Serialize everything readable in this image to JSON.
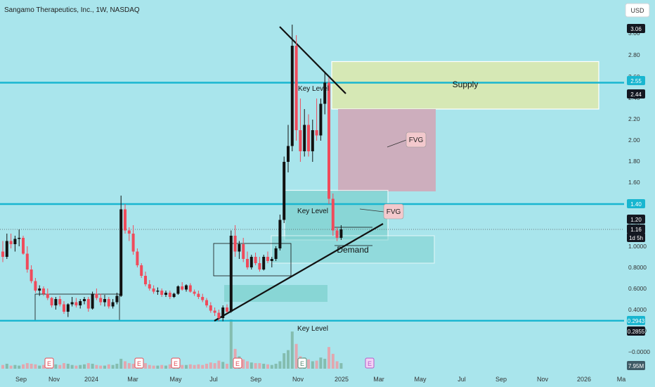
{
  "header": {
    "title": "Sangamo Therapeutics, Inc., 1W, NASDAQ",
    "currency": "USD"
  },
  "colors": {
    "background": "#a9e5ec",
    "bull": "#111111",
    "bear": "#ef4b5b",
    "key_level_line": "#19b6d0",
    "supply_zone": "#d6e8b5",
    "fvg_zone": "#cdaebd",
    "demand_zone": "#7fd2cf"
  },
  "chart_data": {
    "type": "candlestick",
    "title": "Sangamo Therapeutics, Inc., 1W, NASDAQ",
    "timeframe": "1W",
    "exchange": "NASDAQ",
    "y_scale": "log",
    "y_ticks": [
      "3.00",
      "2.80",
      "2.60",
      "2.40",
      "2.20",
      "2.00",
      "1.80",
      "1.60",
      "1.40",
      "1.20",
      "1.0000",
      "0.8000",
      "0.6000",
      "0.4000",
      "0.2000",
      "−0.0000"
    ],
    "x_ticks": [
      "Sep",
      "Nov",
      "2024",
      "Mar",
      "May",
      "Jul",
      "Sep",
      "Nov",
      "2025",
      "Mar",
      "May",
      "Jul",
      "Sep",
      "Nov",
      "2026",
      "Ma"
    ],
    "price_badges": [
      {
        "text": "3.06",
        "style": "dark"
      },
      {
        "text": "2.55",
        "style": "cyan"
      },
      {
        "text": "2.44",
        "style": "dark"
      },
      {
        "text": "1.40",
        "style": "cyan"
      },
      {
        "text": "1.20",
        "style": "dark"
      },
      {
        "text": "1.16",
        "style": "dark"
      },
      {
        "text": "1d 5h",
        "style": "dark"
      },
      {
        "text": "0.2943",
        "style": "cyan"
      },
      {
        "text": "0.2855",
        "style": "dark"
      },
      {
        "text": "7.95M",
        "style": "slate"
      }
    ],
    "key_levels": [
      2.55,
      1.4,
      0.2943
    ],
    "zones": [
      {
        "name": "Supply",
        "from": 2.3,
        "to": 2.75
      },
      {
        "name": "FVG",
        "from": 1.52,
        "to": 2.3
      },
      {
        "name": "FVG",
        "from": 1.06,
        "to": 1.53
      },
      {
        "name": "Demand",
        "from": 0.84,
        "to": 1.1
      }
    ],
    "annotations": [
      "Key Level",
      "Key Level",
      "Key Level",
      "Supply",
      "FVG",
      "FVG",
      "Demand"
    ],
    "event_markers": [
      "E",
      "E",
      "E",
      "E",
      "E",
      "E"
    ],
    "candles": [
      {
        "o": 0.95,
        "h": 1.05,
        "l": 0.85,
        "c": 0.9
      },
      {
        "o": 0.9,
        "h": 1.12,
        "l": 0.88,
        "c": 1.05
      },
      {
        "o": 1.05,
        "h": 1.12,
        "l": 0.98,
        "c": 1.02
      },
      {
        "o": 1.02,
        "h": 1.1,
        "l": 0.95,
        "c": 1.07
      },
      {
        "o": 1.07,
        "h": 1.16,
        "l": 1.0,
        "c": 1.08
      },
      {
        "o": 1.08,
        "h": 1.1,
        "l": 0.92,
        "c": 0.93
      },
      {
        "o": 0.93,
        "h": 1.0,
        "l": 0.75,
        "c": 0.78
      },
      {
        "o": 0.78,
        "h": 0.82,
        "l": 0.65,
        "c": 0.67
      },
      {
        "o": 0.67,
        "h": 0.7,
        "l": 0.56,
        "c": 0.58
      },
      {
        "o": 0.58,
        "h": 0.63,
        "l": 0.53,
        "c": 0.6
      },
      {
        "o": 0.6,
        "h": 0.62,
        "l": 0.53,
        "c": 0.55
      },
      {
        "o": 0.55,
        "h": 0.6,
        "l": 0.49,
        "c": 0.51
      },
      {
        "o": 0.51,
        "h": 0.52,
        "l": 0.42,
        "c": 0.44
      },
      {
        "o": 0.44,
        "h": 0.52,
        "l": 0.4,
        "c": 0.5
      },
      {
        "o": 0.5,
        "h": 0.53,
        "l": 0.43,
        "c": 0.45
      },
      {
        "o": 0.45,
        "h": 0.48,
        "l": 0.36,
        "c": 0.38
      },
      {
        "o": 0.38,
        "h": 0.46,
        "l": 0.33,
        "c": 0.45
      },
      {
        "o": 0.45,
        "h": 0.52,
        "l": 0.43,
        "c": 0.47
      },
      {
        "o": 0.47,
        "h": 0.51,
        "l": 0.42,
        "c": 0.44
      },
      {
        "o": 0.44,
        "h": 0.5,
        "l": 0.41,
        "c": 0.48
      },
      {
        "o": 0.48,
        "h": 0.52,
        "l": 0.45,
        "c": 0.5
      },
      {
        "o": 0.5,
        "h": 0.52,
        "l": 0.38,
        "c": 0.41
      },
      {
        "o": 0.41,
        "h": 0.57,
        "l": 0.4,
        "c": 0.55
      },
      {
        "o": 0.55,
        "h": 0.6,
        "l": 0.49,
        "c": 0.51
      },
      {
        "o": 0.51,
        "h": 0.55,
        "l": 0.44,
        "c": 0.47
      },
      {
        "o": 0.47,
        "h": 0.54,
        "l": 0.43,
        "c": 0.5
      },
      {
        "o": 0.5,
        "h": 0.52,
        "l": 0.41,
        "c": 0.43
      },
      {
        "o": 0.43,
        "h": 0.5,
        "l": 0.41,
        "c": 0.47
      },
      {
        "o": 0.47,
        "h": 0.56,
        "l": 0.45,
        "c": 0.53
      },
      {
        "o": 0.53,
        "h": 1.48,
        "l": 0.52,
        "c": 1.35
      },
      {
        "o": 1.35,
        "h": 1.4,
        "l": 1.12,
        "c": 1.15
      },
      {
        "o": 1.15,
        "h": 1.18,
        "l": 1.05,
        "c": 1.12
      },
      {
        "o": 1.12,
        "h": 1.2,
        "l": 0.92,
        "c": 0.95
      },
      {
        "o": 0.95,
        "h": 0.98,
        "l": 0.8,
        "c": 0.82
      },
      {
        "o": 0.82,
        "h": 0.84,
        "l": 0.7,
        "c": 0.72
      },
      {
        "o": 0.72,
        "h": 0.76,
        "l": 0.62,
        "c": 0.64
      },
      {
        "o": 0.64,
        "h": 0.68,
        "l": 0.58,
        "c": 0.6
      },
      {
        "o": 0.6,
        "h": 0.63,
        "l": 0.55,
        "c": 0.57
      },
      {
        "o": 0.57,
        "h": 0.61,
        "l": 0.54,
        "c": 0.58
      },
      {
        "o": 0.58,
        "h": 0.6,
        "l": 0.52,
        "c": 0.54
      },
      {
        "o": 0.54,
        "h": 0.58,
        "l": 0.52,
        "c": 0.56
      },
      {
        "o": 0.56,
        "h": 0.58,
        "l": 0.5,
        "c": 0.52
      },
      {
        "o": 0.52,
        "h": 0.56,
        "l": 0.51,
        "c": 0.55
      },
      {
        "o": 0.55,
        "h": 0.63,
        "l": 0.54,
        "c": 0.62
      },
      {
        "o": 0.62,
        "h": 0.66,
        "l": 0.58,
        "c": 0.59
      },
      {
        "o": 0.59,
        "h": 0.64,
        "l": 0.57,
        "c": 0.63
      },
      {
        "o": 0.63,
        "h": 0.65,
        "l": 0.56,
        "c": 0.57
      },
      {
        "o": 0.57,
        "h": 0.59,
        "l": 0.53,
        "c": 0.55
      },
      {
        "o": 0.55,
        "h": 0.58,
        "l": 0.5,
        "c": 0.52
      },
      {
        "o": 0.52,
        "h": 0.55,
        "l": 0.47,
        "c": 0.49
      },
      {
        "o": 0.49,
        "h": 0.51,
        "l": 0.42,
        "c": 0.44
      },
      {
        "o": 0.44,
        "h": 0.47,
        "l": 0.37,
        "c": 0.39
      },
      {
        "o": 0.39,
        "h": 0.42,
        "l": 0.34,
        "c": 0.37
      },
      {
        "o": 0.37,
        "h": 0.4,
        "l": 0.29,
        "c": 0.32
      },
      {
        "o": 0.32,
        "h": 0.44,
        "l": 0.29,
        "c": 0.42
      },
      {
        "o": 0.42,
        "h": 0.45,
        "l": 0.37,
        "c": 0.38
      },
      {
        "o": 0.38,
        "h": 1.15,
        "l": 0.37,
        "c": 1.1
      },
      {
        "o": 1.1,
        "h": 1.2,
        "l": 0.9,
        "c": 0.95
      },
      {
        "o": 0.95,
        "h": 1.05,
        "l": 0.88,
        "c": 1.02
      },
      {
        "o": 1.02,
        "h": 1.08,
        "l": 0.85,
        "c": 0.88
      },
      {
        "o": 0.88,
        "h": 0.95,
        "l": 0.78,
        "c": 0.8
      },
      {
        "o": 0.8,
        "h": 0.92,
        "l": 0.78,
        "c": 0.9
      },
      {
        "o": 0.9,
        "h": 0.94,
        "l": 0.82,
        "c": 0.84
      },
      {
        "o": 0.84,
        "h": 0.9,
        "l": 0.76,
        "c": 0.78
      },
      {
        "o": 0.78,
        "h": 0.92,
        "l": 0.77,
        "c": 0.9
      },
      {
        "o": 0.9,
        "h": 0.95,
        "l": 0.84,
        "c": 0.86
      },
      {
        "o": 0.86,
        "h": 0.9,
        "l": 0.8,
        "c": 0.88
      },
      {
        "o": 0.88,
        "h": 1.0,
        "l": 0.86,
        "c": 0.98
      },
      {
        "o": 0.98,
        "h": 1.3,
        "l": 0.96,
        "c": 1.25
      },
      {
        "o": 1.25,
        "h": 1.85,
        "l": 1.22,
        "c": 1.8
      },
      {
        "o": 1.8,
        "h": 2.15,
        "l": 1.7,
        "c": 1.95
      },
      {
        "o": 1.95,
        "h": 3.1,
        "l": 1.9,
        "c": 2.9
      },
      {
        "o": 2.9,
        "h": 3.0,
        "l": 2.0,
        "c": 2.1
      },
      {
        "o": 2.1,
        "h": 2.4,
        "l": 1.8,
        "c": 1.9
      },
      {
        "o": 1.9,
        "h": 2.3,
        "l": 1.85,
        "c": 2.15
      },
      {
        "o": 2.15,
        "h": 2.25,
        "l": 1.85,
        "c": 1.9
      },
      {
        "o": 1.9,
        "h": 2.2,
        "l": 1.8,
        "c": 2.1
      },
      {
        "o": 2.1,
        "h": 2.4,
        "l": 2.0,
        "c": 2.05
      },
      {
        "o": 2.05,
        "h": 2.4,
        "l": 2.0,
        "c": 2.35
      },
      {
        "o": 2.35,
        "h": 2.65,
        "l": 2.25,
        "c": 2.55
      },
      {
        "o": 2.55,
        "h": 2.6,
        "l": 1.4,
        "c": 1.45
      },
      {
        "o": 1.45,
        "h": 1.5,
        "l": 1.1,
        "c": 1.15
      },
      {
        "o": 1.15,
        "h": 1.18,
        "l": 1.05,
        "c": 1.08
      },
      {
        "o": 1.08,
        "h": 1.2,
        "l": 1.06,
        "c": 1.16
      }
    ],
    "volume": [
      0.6,
      0.8,
      0.5,
      0.6,
      0.5,
      0.7,
      0.9,
      0.8,
      0.7,
      0.5,
      0.6,
      0.8,
      1.0,
      0.7,
      0.6,
      0.9,
      0.8,
      0.6,
      0.5,
      0.6,
      0.7,
      0.9,
      0.8,
      0.6,
      0.5,
      0.5,
      0.7,
      0.6,
      0.8,
      1.6,
      1.2,
      0.9,
      0.8,
      0.7,
      0.8,
      0.9,
      0.6,
      0.5,
      0.5,
      0.6,
      0.5,
      0.7,
      0.5,
      0.9,
      0.6,
      0.6,
      0.7,
      0.6,
      0.7,
      0.6,
      0.8,
      1.0,
      0.9,
      1.3,
      1.1,
      0.8,
      7.95,
      3.2,
      2.0,
      1.5,
      1.2,
      1.0,
      0.9,
      0.9,
      0.8,
      0.7,
      0.6,
      0.8,
      1.2,
      2.5,
      3.0,
      6.0,
      4.0,
      2.0,
      1.8,
      1.5,
      1.2,
      1.3,
      1.8,
      1.6,
      3.5,
      2.4,
      1.2,
      0.9
    ]
  }
}
